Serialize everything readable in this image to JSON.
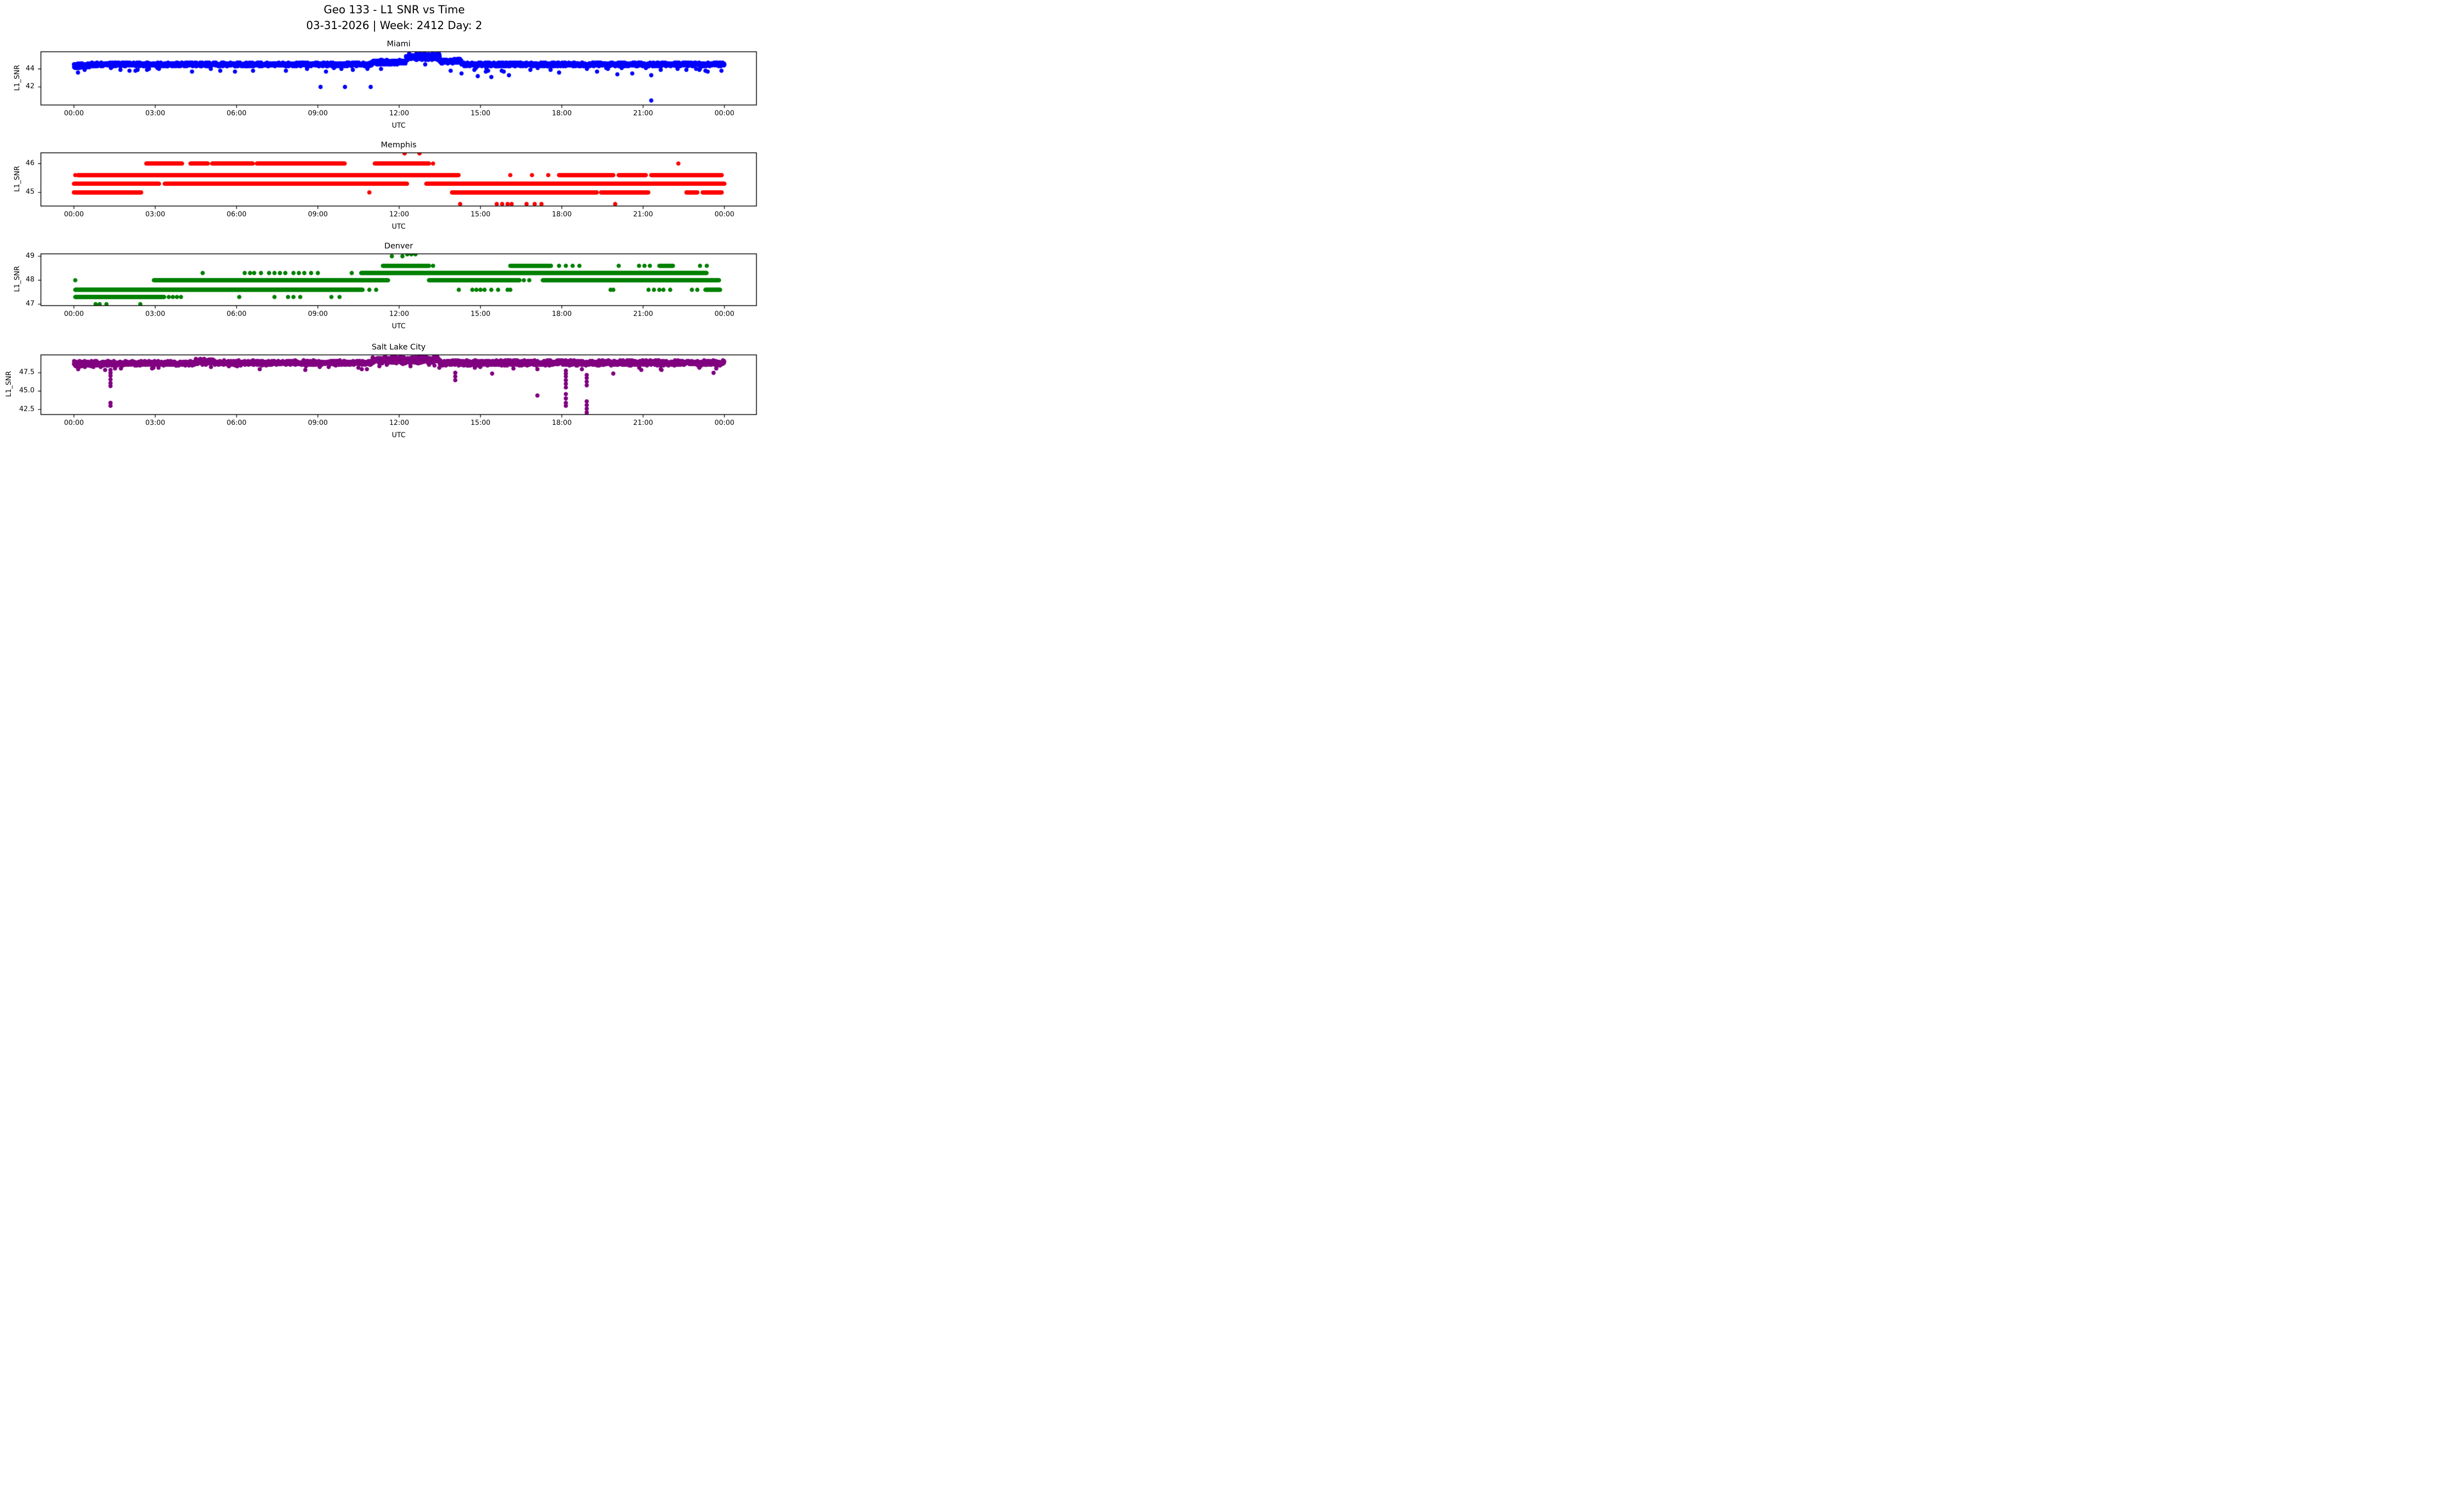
{
  "figure": {
    "suptitle_line1": "Geo 133 - L1 SNR vs Time",
    "suptitle_line2": "03-31-2026 | Week: 2412 Day: 2"
  },
  "axes_common": {
    "xlabel": "UTC",
    "ylabel": "L1_SNR",
    "xtick_labels": [
      "00:00",
      "03:00",
      "06:00",
      "09:00",
      "12:00",
      "15:00",
      "18:00",
      "21:00",
      "00:00"
    ],
    "xtick_hours": [
      0,
      3,
      6,
      9,
      12,
      15,
      18,
      21,
      24
    ],
    "x_unit": "hours UTC of day",
    "grid": "off",
    "legend": "none"
  },
  "chart_data": [
    {
      "type": "scatter",
      "title": "Miami",
      "color": "#0000ff",
      "ylim": [
        40.0,
        45.9
      ],
      "yticks": [
        42,
        44
      ],
      "ytick_labels": [
        "42",
        "44"
      ],
      "band": {
        "step_hours": 0.0075,
        "quantize": 0.1,
        "tail_prob": 0.012,
        "tail_drop": 0.45,
        "segments": [
          {
            "t": [
              0.0,
              0.6
            ],
            "mean": 44.35,
            "spread": 0.3
          },
          {
            "t": [
              0.6,
              11.0
            ],
            "mean": 44.5,
            "spread": 0.25
          },
          {
            "t": [
              11.0,
              12.25
            ],
            "mean": 44.75,
            "spread": 0.3
          },
          {
            "t": [
              12.25,
              13.5
            ],
            "mean": 45.35,
            "spread": 0.42
          },
          {
            "t": [
              13.5,
              14.3
            ],
            "mean": 44.85,
            "spread": 0.3
          },
          {
            "t": [
              14.3,
              24.0
            ],
            "mean": 44.5,
            "spread": 0.25
          }
        ]
      },
      "extra_points": [
        [
          0.15,
          43.6
        ],
        [
          2.05,
          43.8
        ],
        [
          2.35,
          43.9
        ],
        [
          5.05,
          44.0
        ],
        [
          9.3,
          43.7
        ],
        [
          13.9,
          43.8
        ],
        [
          14.3,
          43.5
        ],
        [
          14.9,
          43.2
        ],
        [
          15.4,
          43.1
        ],
        [
          16.05,
          43.3
        ],
        [
          17.9,
          43.6
        ],
        [
          19.3,
          43.7
        ],
        [
          20.05,
          43.4
        ],
        [
          20.6,
          43.5
        ],
        [
          21.3,
          43.3
        ],
        [
          23.3,
          43.8
        ],
        [
          9.1,
          42.0
        ],
        [
          10.0,
          42.0
        ],
        [
          10.95,
          42.0
        ],
        [
          21.3,
          40.5
        ]
      ]
    },
    {
      "type": "scatter",
      "title": "Memphis",
      "color": "#ff0000",
      "ylim": [
        44.53,
        46.37
      ],
      "yticks": [
        45,
        46
      ],
      "ytick_labels": [
        "45",
        "46"
      ],
      "levels": [
        {
          "value": 46.35,
          "segments": [],
          "dots": [
            12.2,
            12.75
          ]
        },
        {
          "value": 46.0,
          "segments": [
            [
              2.67,
              4.0
            ],
            [
              4.3,
              4.95
            ],
            [
              5.1,
              6.6
            ],
            [
              6.75,
              10.0
            ],
            [
              11.1,
              13.1
            ]
          ],
          "dots": [
            13.25,
            22.3
          ]
        },
        {
          "value": 45.6,
          "segments": [
            [
              0.15,
              14.2
            ],
            [
              17.9,
              19.9
            ],
            [
              20.1,
              21.1
            ],
            [
              21.3,
              23.9
            ]
          ],
          "dots": [
            0.05,
            16.1,
            16.9,
            17.5
          ]
        },
        {
          "value": 45.3,
          "segments": [
            [
              0.0,
              3.15
            ],
            [
              3.35,
              12.3
            ],
            [
              13.0,
              24.0
            ]
          ],
          "dots": []
        },
        {
          "value": 45.0,
          "segments": [
            [
              0.0,
              2.5
            ],
            [
              13.95,
              19.3
            ],
            [
              19.45,
              21.2
            ],
            [
              22.6,
              23.0
            ],
            [
              23.2,
              23.9
            ]
          ],
          "dots": [
            10.9
          ]
        },
        {
          "value": 44.6,
          "segments": [],
          "dots": [
            14.25,
            15.6,
            15.8,
            16.0,
            16.15,
            16.7,
            17.0,
            17.25,
            19.97
          ]
        }
      ]
    },
    {
      "type": "scatter",
      "title": "Denver",
      "color": "#008000",
      "ylim": [
        46.94,
        49.1
      ],
      "yticks": [
        47,
        48,
        49
      ],
      "ytick_labels": [
        "47",
        "48",
        "49"
      ],
      "levels": [
        {
          "value": 49.08,
          "segments": [],
          "dots": [
            12.3,
            12.45,
            12.6
          ]
        },
        {
          "value": 49.0,
          "segments": [],
          "dots": [
            11.73,
            12.12
          ]
        },
        {
          "value": 48.6,
          "segments": [
            [
              11.4,
              13.1
            ],
            [
              16.1,
              17.6
            ],
            [
              21.6,
              22.1
            ]
          ],
          "dots": [
            13.25,
            17.9,
            18.15,
            18.4,
            18.65,
            20.1,
            20.85,
            21.05,
            21.25,
            23.1,
            23.35
          ]
        },
        {
          "value": 48.3,
          "segments": [
            [
              10.6,
              23.35
            ]
          ],
          "dots": [
            4.75,
            6.3,
            6.5,
            6.65,
            6.9,
            7.2,
            7.4,
            7.6,
            7.8,
            8.1,
            8.3,
            8.5,
            8.75,
            9.0,
            10.25
          ]
        },
        {
          "value": 48.0,
          "segments": [
            [
              2.95,
              11.6
            ],
            [
              13.1,
              16.45
            ],
            [
              17.3,
              23.8
            ]
          ],
          "dots": [
            0.05,
            16.6,
            16.8
          ]
        },
        {
          "value": 47.6,
          "segments": [
            [
              0.05,
              10.65
            ],
            [
              23.3,
              23.85
            ]
          ],
          "dots": [
            10.9,
            11.15,
            14.2,
            14.7,
            14.85,
            15.0,
            15.15,
            15.4,
            15.65,
            16.0,
            16.1,
            19.8,
            19.9,
            21.2,
            21.4,
            21.6,
            21.75,
            22.0,
            22.8,
            23.0
          ]
        },
        {
          "value": 47.3,
          "segments": [
            [
              0.05,
              3.35
            ]
          ],
          "dots": [
            3.5,
            3.65,
            3.8,
            3.95,
            6.1,
            7.4,
            7.9,
            8.1,
            8.35,
            9.5,
            9.8
          ]
        },
        {
          "value": 47.0,
          "segments": [],
          "dots": [
            0.8,
            0.95,
            1.2,
            2.45
          ]
        }
      ]
    },
    {
      "type": "scatter",
      "title": "Salt Lake City",
      "color": "#800080",
      "ylim": [
        41.8,
        49.95
      ],
      "yticks": [
        42.5,
        45.0,
        47.5
      ],
      "ytick_labels": [
        "42.5",
        "45.0",
        "47.5"
      ],
      "band": {
        "step_hours": 0.0075,
        "quantize": 0.1,
        "tail_prob": 0.01,
        "tail_drop": 0.55,
        "segments": [
          {
            "t": [
              0.0,
              1.0
            ],
            "mean": 48.7,
            "spread": 0.45
          },
          {
            "t": [
              1.0,
              4.5
            ],
            "mean": 48.8,
            "spread": 0.35
          },
          {
            "t": [
              4.5,
              5.2
            ],
            "mean": 49.0,
            "spread": 0.45
          },
          {
            "t": [
              5.2,
              11.0
            ],
            "mean": 48.85,
            "spread": 0.35
          },
          {
            "t": [
              11.0,
              13.5
            ],
            "mean": 49.25,
            "spread": 0.55
          },
          {
            "t": [
              13.5,
              24.0
            ],
            "mean": 48.85,
            "spread": 0.4
          }
        ]
      },
      "spikes": [
        {
          "t": 1.35,
          "values": [
            47.9,
            47.5,
            47.1,
            46.6,
            46.1,
            45.7,
            43.4,
            43.0
          ]
        },
        {
          "t": 14.07,
          "values": [
            47.5,
            47.0,
            46.5
          ]
        },
        {
          "t": 15.43,
          "values": [
            47.4
          ]
        },
        {
          "t": 17.1,
          "values": [
            48.0,
            44.4
          ]
        },
        {
          "t": 18.15,
          "values": [
            47.8,
            47.4,
            47.0,
            46.5,
            46.0,
            45.5,
            44.6,
            44.0,
            43.4,
            43.0
          ]
        },
        {
          "t": 18.92,
          "values": [
            47.2,
            46.8,
            46.3,
            45.8,
            43.6,
            43.1,
            42.6,
            42.1,
            41.8
          ]
        },
        {
          "t": 19.9,
          "values": [
            47.4
          ]
        },
        {
          "t": 23.6,
          "values": [
            47.5
          ]
        }
      ]
    }
  ]
}
